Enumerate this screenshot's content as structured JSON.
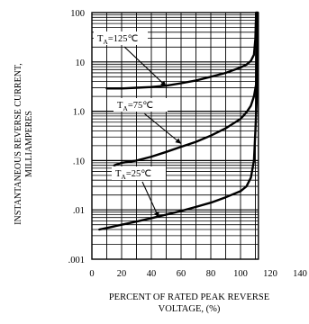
{
  "chart_data": {
    "type": "line",
    "xlabel": "PERCENT OF RATED PEAK REVERSE VOLTAGE, (%)",
    "xlabel_lines": [
      "PERCENT OF RATED PEAK REVERSE",
      "VOLTAGE, (%)"
    ],
    "ylabel": "INSTANTANEOUS REVERSE CURRENT, MILLIAMPERES",
    "ylabel_lines": [
      "INSTANTANEOUS REVERSE CURRENT,",
      "MILLIAMPERES"
    ],
    "x_ticks": [
      0,
      20,
      40,
      60,
      80,
      100,
      120,
      140
    ],
    "x_tick_labels": [
      "0",
      "20",
      "40",
      "60",
      "80",
      "100",
      "120",
      "140"
    ],
    "xlim": [
      0,
      140
    ],
    "y_scale": "log",
    "y_ticks": [
      0.001,
      0.01,
      0.1,
      1,
      10,
      100
    ],
    "y_tick_labels": [
      ".001",
      ".01",
      ".10",
      "1.0",
      "10",
      "100"
    ],
    "ylim": [
      0.001,
      100
    ],
    "grid": true,
    "series": [
      {
        "annotation": {
          "prefix": "T",
          "sub": "A",
          "suffix": "=125℃",
          "arrow_to": [
            50,
            3.2
          ]
        },
        "x": [
          10,
          20,
          30,
          40,
          50,
          60,
          70,
          80,
          90,
          100,
          104,
          107,
          109,
          110,
          110.5
        ],
        "y": [
          2.9,
          2.9,
          3.0,
          3.1,
          3.3,
          3.7,
          4.2,
          5.0,
          6.0,
          7.7,
          8.8,
          10.5,
          14,
          30,
          100
        ]
      },
      {
        "annotation": {
          "prefix": "T",
          "sub": "A",
          "suffix": "=75℃",
          "arrow_to": [
            60,
            0.22
          ]
        },
        "x": [
          15,
          20,
          30,
          40,
          50,
          60,
          70,
          80,
          90,
          100,
          104,
          107,
          109,
          110.5,
          111,
          111.2
        ],
        "y": [
          0.08,
          0.09,
          0.1,
          0.12,
          0.15,
          0.19,
          0.24,
          0.32,
          0.45,
          0.7,
          0.95,
          1.3,
          2.0,
          3.5,
          10,
          100
        ]
      },
      {
        "annotation": {
          "prefix": "T",
          "sub": "A",
          "suffix": "=25℃",
          "arrow_to": [
            45,
            0.007
          ]
        },
        "x": [
          5,
          10,
          20,
          30,
          40,
          50,
          60,
          70,
          80,
          90,
          100,
          104,
          107,
          109,
          110,
          111,
          111.5
        ],
        "y": [
          0.004,
          0.0043,
          0.005,
          0.0058,
          0.0068,
          0.008,
          0.0095,
          0.0115,
          0.014,
          0.018,
          0.024,
          0.03,
          0.045,
          0.1,
          0.4,
          2.0,
          100
        ]
      }
    ]
  }
}
